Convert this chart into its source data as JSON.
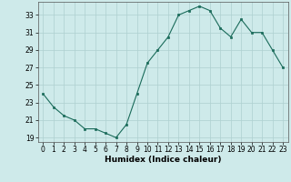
{
  "x": [
    0,
    1,
    2,
    3,
    4,
    5,
    6,
    7,
    8,
    9,
    10,
    11,
    12,
    13,
    14,
    15,
    16,
    17,
    18,
    19,
    20,
    21,
    22,
    23
  ],
  "y": [
    24,
    22.5,
    21.5,
    21,
    20,
    20,
    19.5,
    19,
    20.5,
    24,
    27.5,
    29,
    30.5,
    33,
    33.5,
    34,
    33.5,
    31.5,
    30.5,
    32.5,
    31,
    31,
    29,
    27
  ],
  "xlabel": "Humidex (Indice chaleur)",
  "xlim": [
    -0.5,
    23.5
  ],
  "ylim": [
    18.5,
    34.5
  ],
  "yticks": [
    19,
    21,
    23,
    25,
    27,
    29,
    31,
    33
  ],
  "xticks": [
    0,
    1,
    2,
    3,
    4,
    5,
    6,
    7,
    8,
    9,
    10,
    11,
    12,
    13,
    14,
    15,
    16,
    17,
    18,
    19,
    20,
    21,
    22,
    23
  ],
  "line_color": "#1a6b5a",
  "marker_color": "#1a6b5a",
  "bg_color": "#ceeaea",
  "grid_color": "#aed0d0",
  "label_fontsize": 6.5,
  "tick_fontsize": 5.5
}
